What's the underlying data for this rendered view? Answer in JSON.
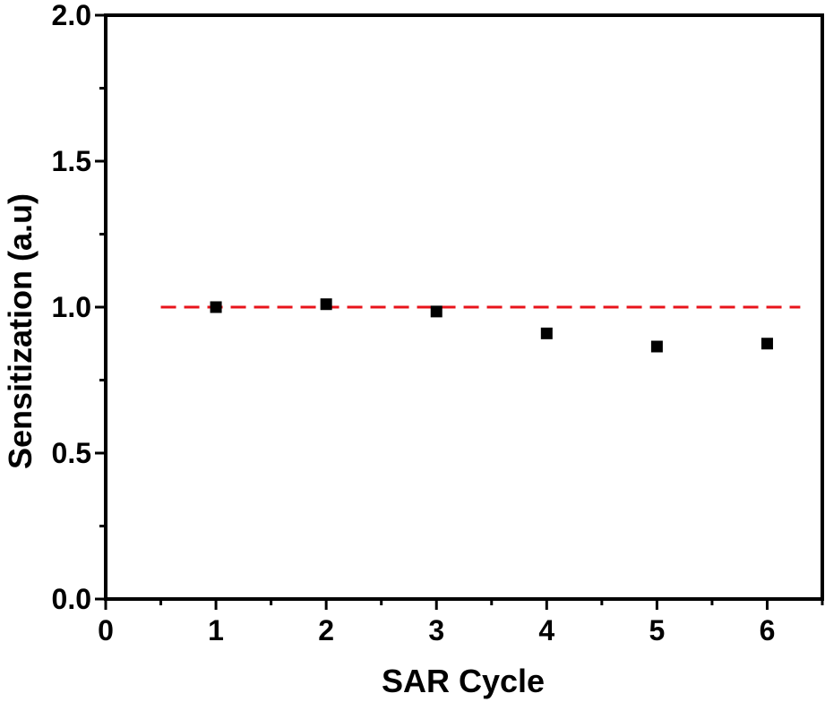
{
  "chart_data": {
    "type": "scatter",
    "title": "",
    "xlabel": "SAR Cycle",
    "ylabel": "Sensitization (a.u)",
    "xlim": [
      0,
      6.5
    ],
    "ylim": [
      0.0,
      2.0
    ],
    "x_ticks": [
      {
        "value": 0,
        "label": "0"
      },
      {
        "value": 1,
        "label": "1"
      },
      {
        "value": 2,
        "label": "2"
      },
      {
        "value": 3,
        "label": "3"
      },
      {
        "value": 4,
        "label": "4"
      },
      {
        "value": 5,
        "label": "5"
      },
      {
        "value": 6,
        "label": "6"
      }
    ],
    "y_ticks": [
      {
        "value": 0.0,
        "label": "0.0"
      },
      {
        "value": 0.5,
        "label": "0.5"
      },
      {
        "value": 1.0,
        "label": "1.0"
      },
      {
        "value": 1.5,
        "label": "1.5"
      },
      {
        "value": 2.0,
        "label": "2.0"
      }
    ],
    "grid": false,
    "series": [
      {
        "color": "#000000",
        "marker": "square",
        "x": [
          1,
          2,
          3,
          4,
          5,
          6
        ],
        "y": [
          1.0,
          1.01,
          0.985,
          0.91,
          0.865,
          0.875
        ]
      }
    ],
    "reference_line": {
      "y": 1.0,
      "x_range": [
        0.5,
        6.3
      ],
      "color": "#e8141b",
      "style": "dashed"
    }
  }
}
